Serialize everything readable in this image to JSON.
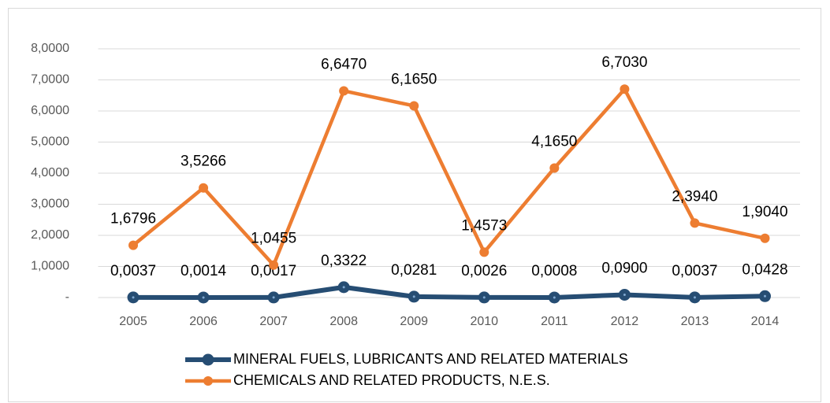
{
  "chart_data": {
    "type": "line",
    "categories": [
      "2005",
      "2006",
      "2007",
      "2008",
      "2009",
      "2010",
      "2011",
      "2012",
      "2013",
      "2014"
    ],
    "series": [
      {
        "name": "MINERAL FUELS, LUBRICANTS AND RELATED MATERIALS",
        "color": "#264d73",
        "values": [
          0.0037,
          0.0014,
          0.0017,
          0.3322,
          0.0281,
          0.0026,
          0.0008,
          0.09,
          0.0037,
          0.0428
        ],
        "value_labels": [
          "0,0037",
          "0,0014",
          "0,0017",
          "0,3322",
          "0,0281",
          "0,0026",
          "0,0008",
          "0,0900",
          "0,0037",
          "0,0428"
        ]
      },
      {
        "name": "CHEMICALS AND RELATED PRODUCTS, N.E.S.",
        "color": "#ed7d31",
        "values": [
          1.6796,
          3.5266,
          1.0455,
          6.647,
          6.165,
          1.4573,
          4.165,
          6.703,
          2.394,
          1.904
        ],
        "value_labels": [
          "1,6796",
          "3,5266",
          "1,0455",
          "6,6470",
          "6,1650",
          "1,4573",
          "4,1650",
          "6,7030",
          "2,3940",
          "1,9040"
        ]
      }
    ],
    "ylim": [
      0,
      8
    ],
    "yticks": [
      {
        "value": 0,
        "label": "-"
      },
      {
        "value": 1,
        "label": "1,0000"
      },
      {
        "value": 2,
        "label": "2,0000"
      },
      {
        "value": 3,
        "label": "3,0000"
      },
      {
        "value": 4,
        "label": "4,0000"
      },
      {
        "value": 5,
        "label": "5,0000"
      },
      {
        "value": 6,
        "label": "6,0000"
      },
      {
        "value": 7,
        "label": "7,0000"
      },
      {
        "value": 8,
        "label": "8,0000"
      }
    ],
    "grid": true,
    "legend": "bottom"
  }
}
